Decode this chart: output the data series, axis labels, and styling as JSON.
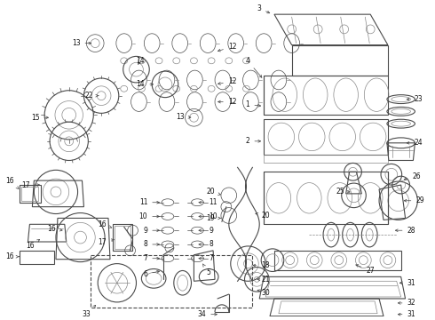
{
  "fig_width": 4.9,
  "fig_height": 3.6,
  "dpi": 100,
  "bg_color": "#ffffff",
  "lc": "#4a4a4a",
  "lc_dark": "#222222",
  "lc_light": "#888888",
  "label_fs": 5.5,
  "label_color": "#111111",
  "lw_thick": 1.2,
  "lw_med": 0.8,
  "lw_thin": 0.5
}
